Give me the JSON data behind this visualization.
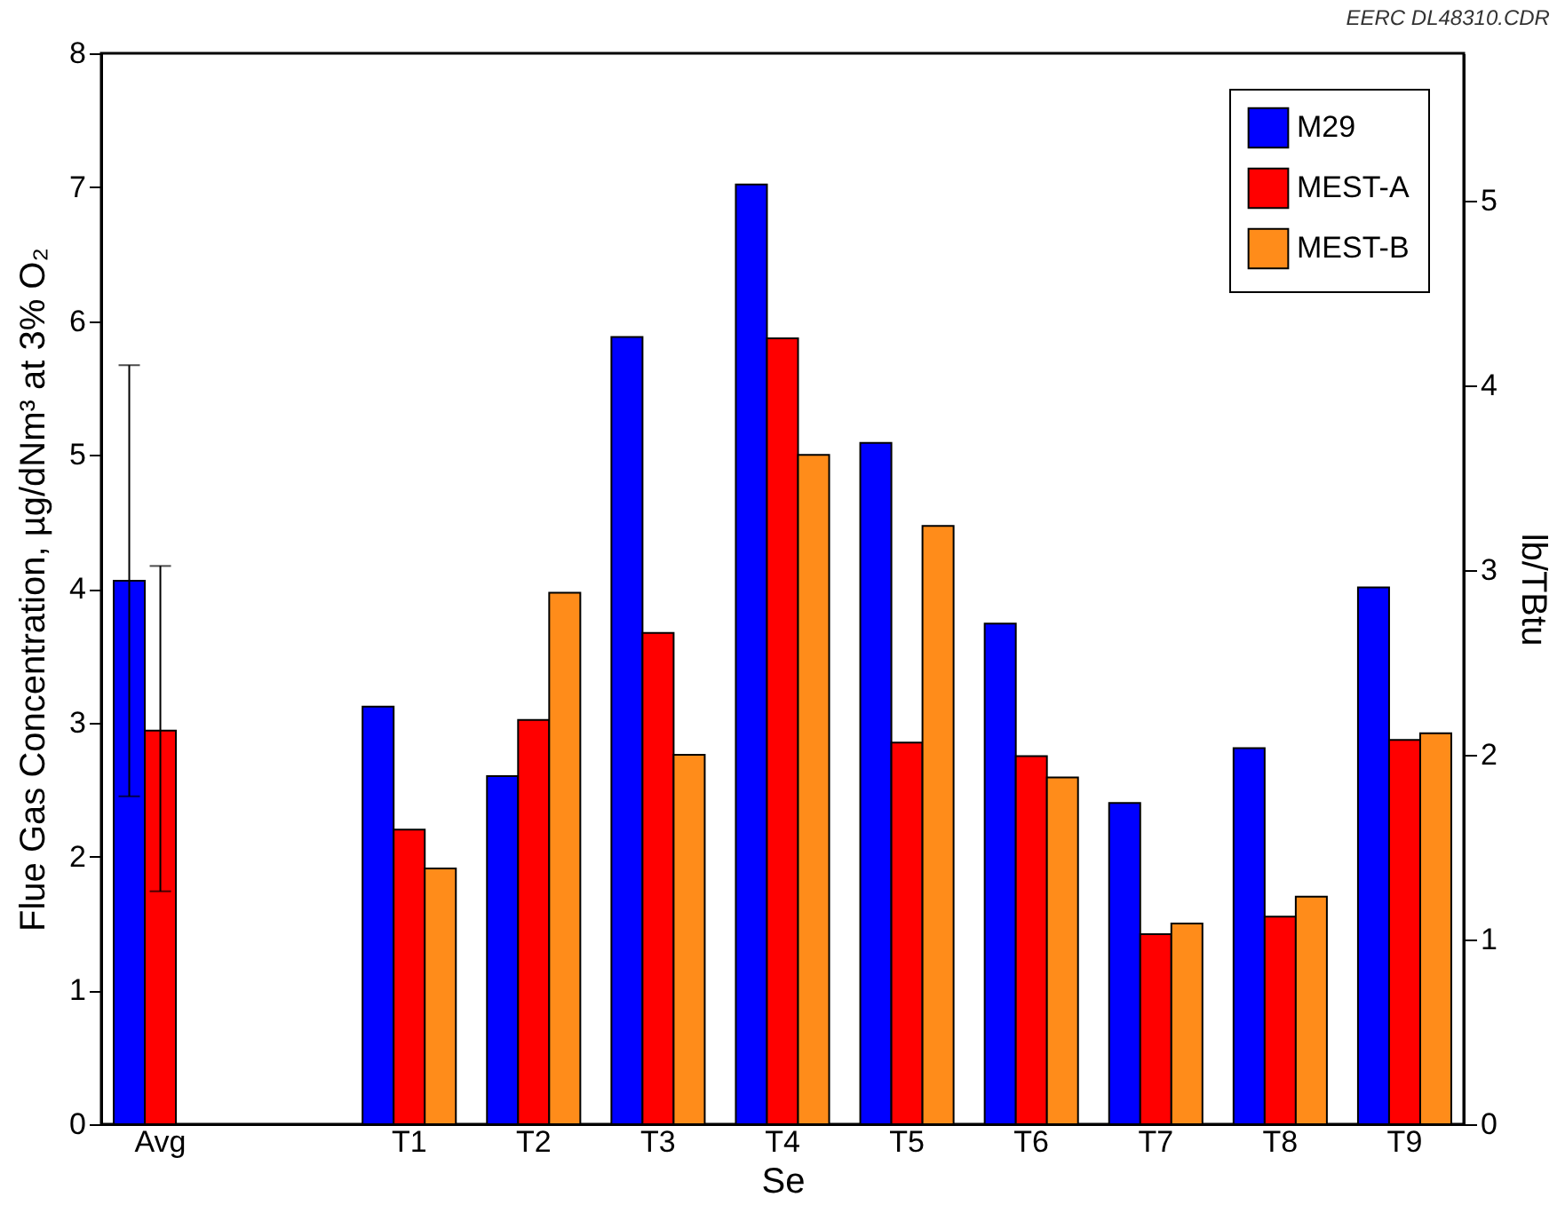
{
  "chart_data": {
    "type": "bar",
    "xlabel": "Se",
    "ylabel": "Flue Gas Concentration, µg/dNm³ at 3% O₂",
    "y2label": "lb/TBtu",
    "annotations": [
      "EERC DL48310.CDR"
    ],
    "categories": [
      "Avg",
      null,
      "T1",
      "T2",
      "T3",
      "T4",
      "T5",
      "T6",
      "T7",
      "T8",
      "T9"
    ],
    "series": [
      {
        "name": "M29",
        "color": "#0000ff",
        "values": [
          4.06,
          null,
          3.12,
          2.6,
          5.88,
          7.02,
          5.09,
          3.74,
          2.4,
          2.81,
          4.01
        ],
        "errors": [
          [
            2.45,
            5.67
          ],
          null,
          null,
          null,
          null,
          null,
          null,
          null,
          null,
          null,
          null
        ]
      },
      {
        "name": "MEST-A",
        "color": "#ff0000",
        "values": [
          2.94,
          null,
          2.2,
          3.02,
          3.67,
          5.87,
          2.85,
          2.75,
          1.42,
          1.55,
          2.87
        ],
        "errors": [
          [
            1.74,
            4.17
          ],
          null,
          null,
          null,
          null,
          null,
          null,
          null,
          null,
          null,
          null
        ]
      },
      {
        "name": "MEST-B",
        "color": "#ff8c1a",
        "values": [
          null,
          null,
          1.91,
          3.97,
          2.76,
          5.0,
          4.47,
          2.59,
          1.5,
          1.7,
          2.92
        ]
      }
    ],
    "ylim": [
      0,
      8
    ],
    "yticks": [
      0,
      1,
      2,
      3,
      4,
      5,
      6,
      7,
      8
    ],
    "y2lim": [
      0,
      5.8
    ],
    "y2ticks": [
      0,
      1,
      2,
      3,
      4,
      5
    ],
    "grid": false,
    "legend": "top right"
  }
}
